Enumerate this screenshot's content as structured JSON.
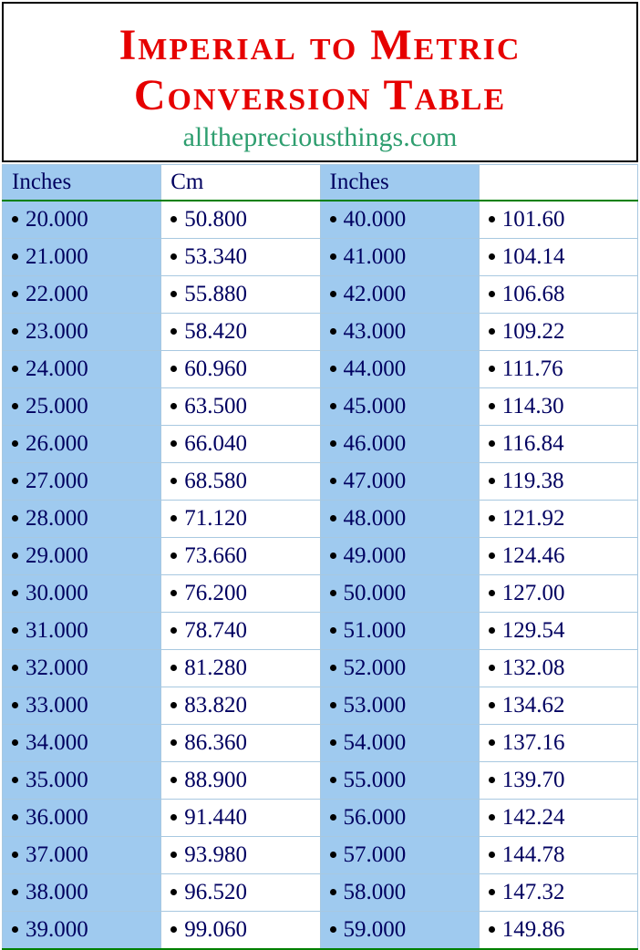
{
  "header": {
    "title_line1": "Imperial to Metric",
    "title_line2": "Conversion Table",
    "subtitle": "allthepreciousthings.com"
  },
  "table": {
    "columns": [
      "Inches",
      "Cm",
      "Inches",
      ""
    ],
    "column_bg": [
      "#9fcaef",
      "#ffffff",
      "#9fcaef",
      "#ffffff"
    ],
    "header_border_bottom": "#008000",
    "cell_border": "#a8c8e0",
    "text_color": "#000060",
    "font_size": 25,
    "rows": [
      [
        "20.000",
        "50.800",
        "40.000",
        "101.60"
      ],
      [
        "21.000",
        "53.340",
        "41.000",
        "104.14"
      ],
      [
        "22.000",
        "55.880",
        "42.000",
        "106.68"
      ],
      [
        "23.000",
        "58.420",
        "43.000",
        "109.22"
      ],
      [
        "24.000",
        "60.960",
        "44.000",
        "111.76"
      ],
      [
        "25.000",
        "63.500",
        "45.000",
        "114.30"
      ],
      [
        "26.000",
        "66.040",
        "46.000",
        "116.84"
      ],
      [
        "27.000",
        "68.580",
        "47.000",
        "119.38"
      ],
      [
        "28.000",
        "71.120",
        "48.000",
        "121.92"
      ],
      [
        "29.000",
        "73.660",
        "49.000",
        "124.46"
      ],
      [
        "30.000",
        "76.200",
        "50.000",
        "127.00"
      ],
      [
        "31.000",
        "78.740",
        "51.000",
        "129.54"
      ],
      [
        "32.000",
        "81.280",
        "52.000",
        "132.08"
      ],
      [
        "33.000",
        "83.820",
        "53.000",
        "134.62"
      ],
      [
        "34.000",
        "86.360",
        "54.000",
        "137.16"
      ],
      [
        "35.000",
        "88.900",
        "55.000",
        "139.70"
      ],
      [
        "36.000",
        "91.440",
        "56.000",
        "142.24"
      ],
      [
        "37.000",
        "93.980",
        "57.000",
        "144.78"
      ],
      [
        "38.000",
        "96.520",
        "58.000",
        "147.32"
      ],
      [
        "39.000",
        "99.060",
        "59.000",
        "149.86"
      ]
    ]
  },
  "style": {
    "title_color": "#e60000",
    "subtitle_color": "#2e9e6f",
    "bg": "#ffffff"
  }
}
